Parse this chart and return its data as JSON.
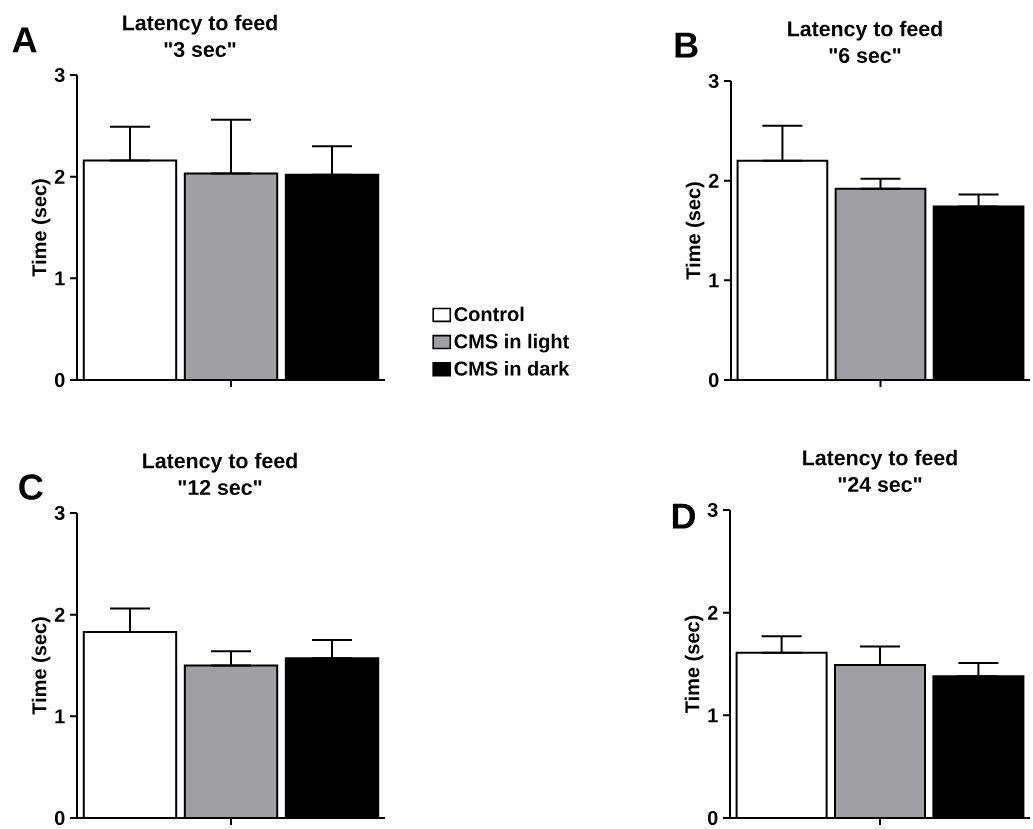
{
  "chart_data": [
    {
      "type": "bar",
      "title": "Latency to feed",
      "subtitle": "\"3 sec\"",
      "ylabel": "Time (sec)",
      "annotations": [
        "A"
      ],
      "categories": [
        null
      ],
      "ylim": [
        0,
        3
      ],
      "yticks": [
        0,
        1,
        2,
        3
      ],
      "legend": "right",
      "series": [
        {
          "name": "Control",
          "color": "#ffffff",
          "values": [
            2.16
          ],
          "errors": [
            [
              2.16,
              2.49
            ]
          ]
        },
        {
          "name": "CMS in light",
          "color": "#a0a0a4",
          "values": [
            2.03
          ],
          "errors": [
            [
              2.03,
              2.56
            ]
          ]
        },
        {
          "name": "CMS in dark",
          "color": "#000000",
          "values": [
            2.02
          ],
          "errors": [
            [
              2.02,
              2.3
            ]
          ]
        }
      ]
    },
    {
      "type": "bar",
      "title": "Latency to feed",
      "subtitle": "\"6 sec\"",
      "ylabel": "Time (sec)",
      "annotations": [
        "B"
      ],
      "categories": [
        null
      ],
      "ylim": [
        0,
        3
      ],
      "yticks": [
        0,
        1,
        2,
        3
      ],
      "series": [
        {
          "color": "#ffffff",
          "values": [
            2.2
          ],
          "errors": [
            [
              2.2,
              2.55
            ]
          ]
        },
        {
          "color": "#a0a0a4",
          "values": [
            1.92
          ],
          "errors": [
            [
              1.92,
              2.02
            ]
          ]
        },
        {
          "color": "#000000",
          "values": [
            1.74
          ],
          "errors": [
            [
              1.74,
              1.86
            ]
          ]
        }
      ]
    },
    {
      "type": "bar",
      "title": "Latency to feed",
      "subtitle": "\"12 sec\"",
      "ylabel": "Time (sec)",
      "annotations": [
        "C"
      ],
      "categories": [
        null
      ],
      "ylim": [
        0,
        3
      ],
      "yticks": [
        0,
        1,
        2,
        3
      ],
      "series": [
        {
          "color": "#ffffff",
          "values": [
            1.83
          ],
          "errors": [
            [
              1.83,
              2.06
            ]
          ]
        },
        {
          "color": "#a0a0a4",
          "values": [
            1.5
          ],
          "errors": [
            [
              1.5,
              1.64
            ]
          ]
        },
        {
          "color": "#000000",
          "values": [
            1.57
          ],
          "errors": [
            [
              1.57,
              1.75
            ]
          ]
        }
      ]
    },
    {
      "type": "bar",
      "title": "Latency to feed",
      "subtitle": "\"24 sec\"",
      "ylabel": "Time (sec)",
      "annotations": [
        "D"
      ],
      "categories": [
        null
      ],
      "ylim": [
        0,
        3
      ],
      "yticks": [
        0,
        1,
        2,
        3
      ],
      "series": [
        {
          "color": "#ffffff",
          "values": [
            1.61
          ],
          "errors": [
            [
              1.61,
              1.77
            ]
          ]
        },
        {
          "color": "#a0a0a4",
          "values": [
            1.49
          ],
          "errors": [
            [
              1.49,
              1.67
            ]
          ]
        },
        {
          "color": "#000000",
          "values": [
            1.38
          ],
          "errors": [
            [
              1.38,
              1.51
            ]
          ]
        }
      ]
    }
  ]
}
